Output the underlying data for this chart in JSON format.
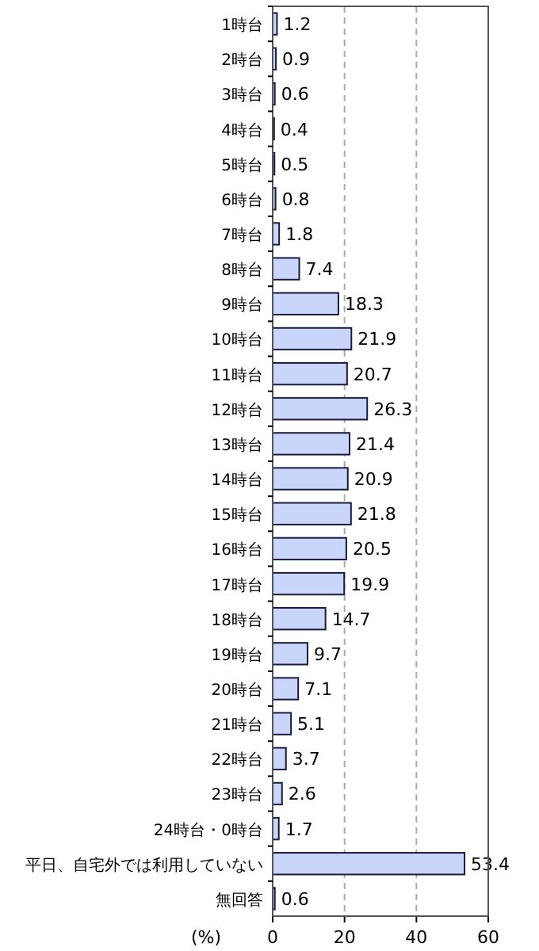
{
  "chart_data": {
    "type": "bar",
    "orientation": "horizontal",
    "xlabel": "(%)",
    "categories": [
      "1時台",
      "2時台",
      "3時台",
      "4時台",
      "5時台",
      "6時台",
      "7時台",
      "8時台",
      "9時台",
      "10時台",
      "11時台",
      "12時台",
      "13時台",
      "14時台",
      "15時台",
      "16時台",
      "17時台",
      "18時台",
      "19時台",
      "20時台",
      "21時台",
      "22時台",
      "23時台",
      "24時台・0時台",
      "平日、自宅外では利用していない",
      "無回答"
    ],
    "values": [
      1.2,
      0.9,
      0.6,
      0.4,
      0.5,
      0.8,
      1.8,
      7.4,
      18.3,
      21.9,
      20.7,
      26.3,
      21.4,
      20.9,
      21.8,
      20.5,
      19.9,
      14.7,
      9.7,
      7.1,
      5.1,
      3.7,
      2.6,
      1.7,
      53.4,
      0.6
    ],
    "color": "#c9d5fa",
    "data_labels": true,
    "xlim": [
      0,
      60
    ],
    "xticks": [
      0,
      20,
      40,
      60
    ],
    "grid": "x"
  }
}
